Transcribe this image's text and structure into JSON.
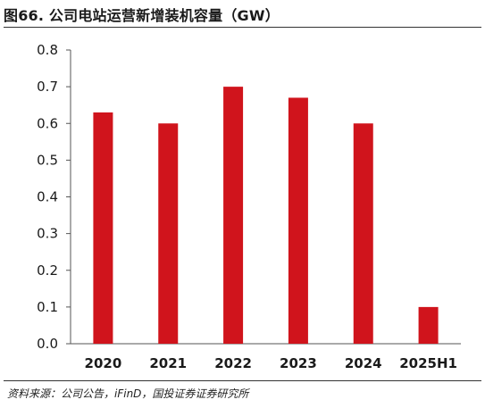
{
  "header": {
    "figure_title": "图66. 公司电站运营新增装机容量（GW）"
  },
  "footer": {
    "source": "资料来源：公司公告，iFinD，国投证券证券研究所"
  },
  "chart_data": {
    "type": "bar",
    "title": "图66. 公司电站运营新增装机容量（GW）",
    "categories": [
      "2020",
      "2021",
      "2022",
      "2023",
      "2024",
      "2025H1"
    ],
    "values": [
      0.63,
      0.6,
      0.7,
      0.67,
      0.6,
      0.1
    ],
    "y_ticks": [
      "0.0",
      "0.1",
      "0.2",
      "0.3",
      "0.4",
      "0.5",
      "0.6",
      "0.7",
      "0.8"
    ],
    "xlabel": "",
    "ylabel": "",
    "ylim": [
      0,
      0.8
    ],
    "grid": false,
    "bar_color": "#d0141c"
  }
}
